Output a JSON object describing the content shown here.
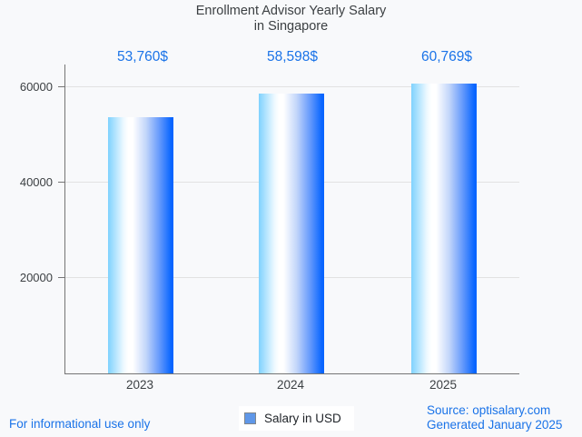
{
  "page": {
    "background": "#f8f9fb",
    "accent_blue": "#1a73e8",
    "text_gray": "#3c4043"
  },
  "chart_data": {
    "type": "bar",
    "title": "Enrollment Advisor Yearly Salary in Singapore",
    "title_lines": [
      "Enrollment Advisor Yearly Salary",
      "in Singapore"
    ],
    "categories": [
      "2023",
      "2024",
      "2025"
    ],
    "series": [
      {
        "name": "Salary in USD",
        "values": [
          53760,
          58598,
          60769
        ]
      }
    ],
    "values": [
      53760,
      58598,
      60769
    ],
    "value_labels": [
      "53,760$",
      "58,598$",
      "60,769$"
    ],
    "xlabel": "",
    "ylabel": "",
    "ylim": [
      0,
      64500
    ],
    "yticks": [
      20000,
      40000,
      60000
    ],
    "ytick_labels": [
      "20000",
      "40000",
      "60000"
    ],
    "grid": true,
    "legend_position": "bottom",
    "bar_gradient": [
      "#7fd2fe",
      "#ffffff",
      "#0663ff"
    ]
  },
  "legend": {
    "label": "Salary in USD",
    "swatch_fill": "#5f97e8",
    "swatch_border": "#80868b"
  },
  "footer": {
    "disclaimer": "For informational use only",
    "source": "Source: optisalary.com",
    "generated": "Generated January 2025"
  }
}
